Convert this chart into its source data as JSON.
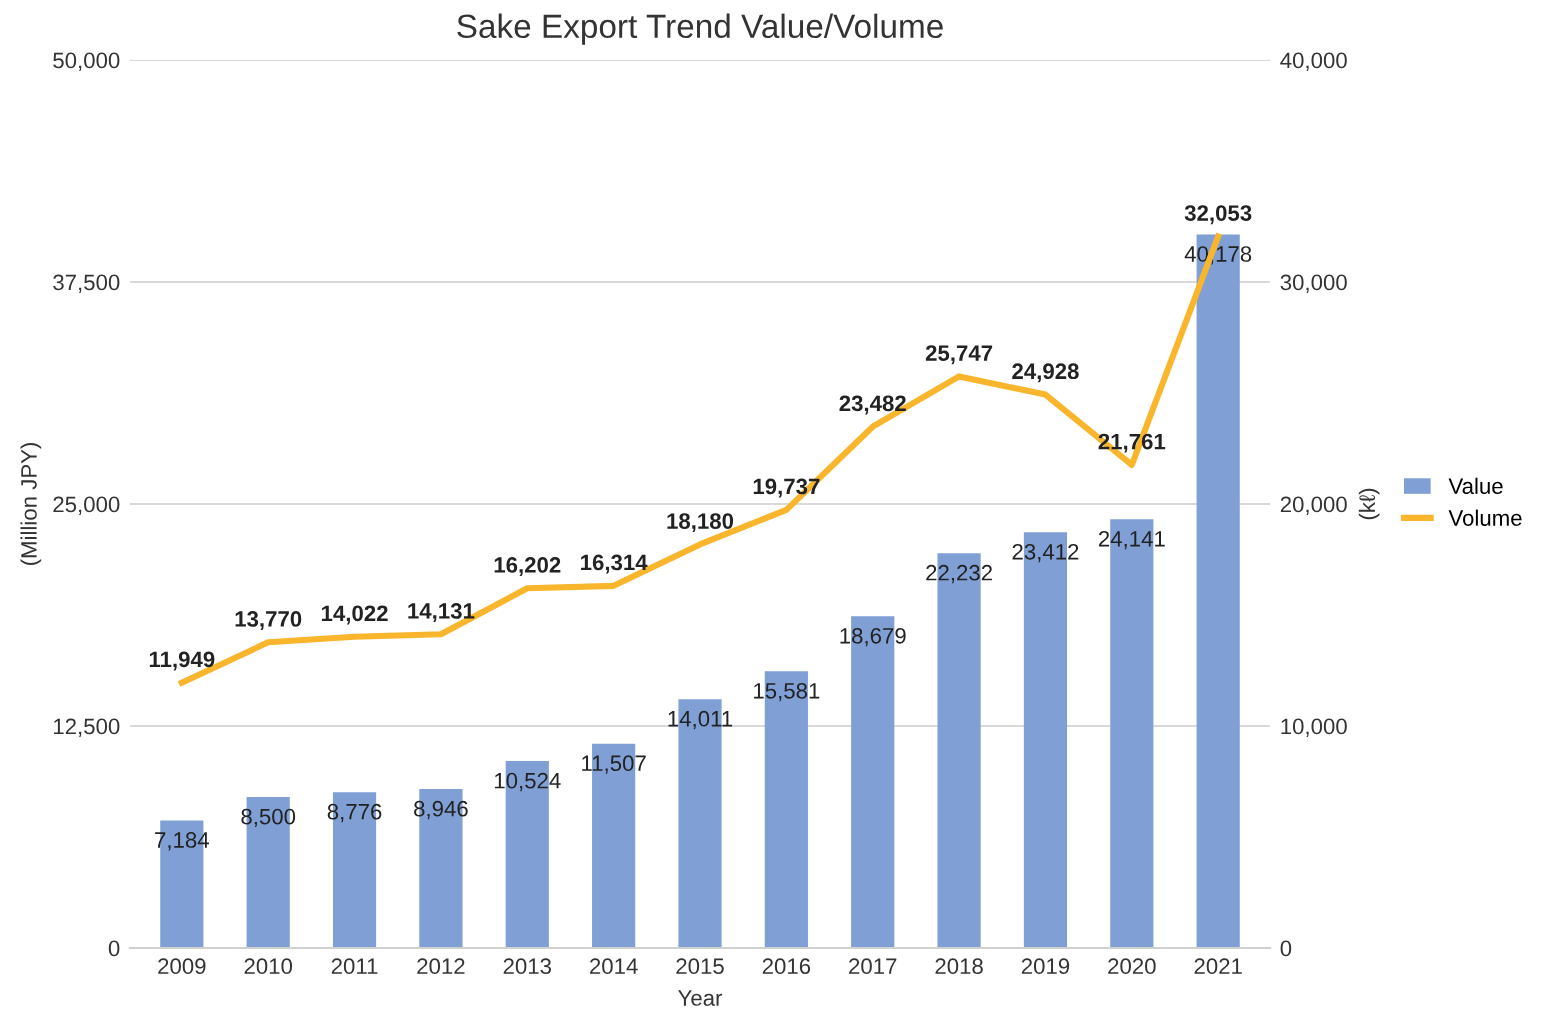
{
  "chart_data": {
    "type": "bar",
    "title": "Sake Export Trend Value/Volume",
    "xlabel": "Year",
    "ylabel": "(Million JPY)",
    "y2label": "(kℓ)",
    "categories": [
      "2009",
      "2010",
      "2011",
      "2012",
      "2013",
      "2014",
      "2015",
      "2016",
      "2017",
      "2018",
      "2019",
      "2020",
      "2021"
    ],
    "series": [
      {
        "name": "Value",
        "color": "#7f9fd5",
        "values": [
          7184,
          8500,
          8776,
          8946,
          10524,
          11507,
          14011,
          15581,
          18679,
          22232,
          23412,
          24141,
          40178
        ],
        "value_labels": [
          "7,184",
          "8,500",
          "8,776",
          "8,946",
          "10,524",
          "11,507",
          "14,011",
          "15,581",
          "18,679",
          "22,232",
          "23,412",
          "24,141",
          "40,178"
        ]
      },
      {
        "name": "Volume",
        "type": "line",
        "axis": "y2",
        "color": "#f9b62d",
        "values": [
          11949,
          13770,
          14022,
          14131,
          16202,
          16314,
          18180,
          19737,
          23482,
          25747,
          24928,
          21761,
          32053
        ],
        "value_labels": [
          "11,949",
          "13,770",
          "14,022",
          "14,131",
          "16,202",
          "16,314",
          "18,180",
          "19,737",
          "23,482",
          "25,747",
          "24,928",
          "21,761",
          "32,053"
        ]
      }
    ],
    "ylim": [
      0,
      50000
    ],
    "yticks": [
      {
        "value": 0,
        "label": "0"
      },
      {
        "value": 12500,
        "label": "12,500"
      },
      {
        "value": 25000,
        "label": "25,000"
      },
      {
        "value": 37500,
        "label": "37,500"
      },
      {
        "value": 50000,
        "label": "50,000"
      }
    ],
    "y2lim": [
      0,
      40000
    ],
    "y2ticks": [
      {
        "value": 0,
        "label": "0"
      },
      {
        "value": 10000,
        "label": "10,000"
      },
      {
        "value": 20000,
        "label": "20,000"
      },
      {
        "value": 30000,
        "label": "30,000"
      },
      {
        "value": 40000,
        "label": "40,000"
      }
    ],
    "grid": "y",
    "legend": "right",
    "marker": "none"
  }
}
